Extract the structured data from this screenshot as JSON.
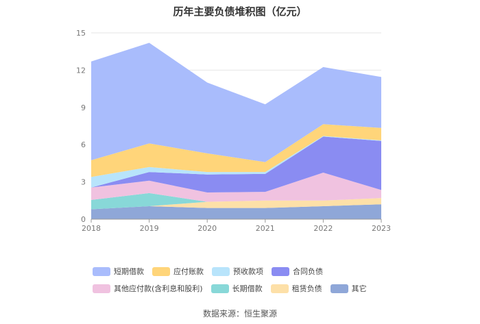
{
  "title": "历年主要负债堆积图（亿元）",
  "source": "数据来源：恒生聚源",
  "chart_data": {
    "type": "area",
    "stacked": true,
    "x": [
      "2018",
      "2019",
      "2020",
      "2021",
      "2022",
      "2023"
    ],
    "ylim": [
      0,
      15
    ],
    "yticks": [
      0,
      3,
      6,
      9,
      12,
      15
    ],
    "grid": true,
    "legend_position": "bottom",
    "series": [
      {
        "name": "其它",
        "color": "#8fa7d8",
        "values": [
          0.8,
          1.05,
          0.9,
          0.9,
          1.05,
          1.2
        ]
      },
      {
        "name": "租赁负债",
        "color": "#fde0a8",
        "values": [
          0,
          0,
          0.5,
          0.6,
          0.45,
          0.5
        ]
      },
      {
        "name": "长期借款",
        "color": "#88d8d8",
        "values": [
          0.75,
          1.05,
          0,
          0,
          0,
          0
        ]
      },
      {
        "name": "其他应付款(含利息和股利)",
        "color": "#f0c2e0",
        "values": [
          1.0,
          1.0,
          0.75,
          0.7,
          2.25,
          0.65
        ]
      },
      {
        "name": "合同负债",
        "color": "#8a8cf2",
        "values": [
          0,
          0.7,
          1.45,
          1.45,
          2.9,
          3.95
        ]
      },
      {
        "name": "预收款项",
        "color": "#b8e4fb",
        "values": [
          0.85,
          0.4,
          0.2,
          0.15,
          0.05,
          0.05
        ]
      },
      {
        "name": "应付账款",
        "color": "#ffd57a",
        "values": [
          1.35,
          1.9,
          1.5,
          0.8,
          0.95,
          1.0
        ]
      },
      {
        "name": "短期借款",
        "color": "#a9bcfc",
        "values": [
          7.95,
          8.1,
          5.7,
          4.65,
          4.6,
          4.1
        ]
      }
    ],
    "legend_order": [
      "短期借款",
      "应付账款",
      "预收款项",
      "合同负债",
      "其他应付款(含利息和股利)",
      "长期借款",
      "租赁负债",
      "其它"
    ]
  }
}
